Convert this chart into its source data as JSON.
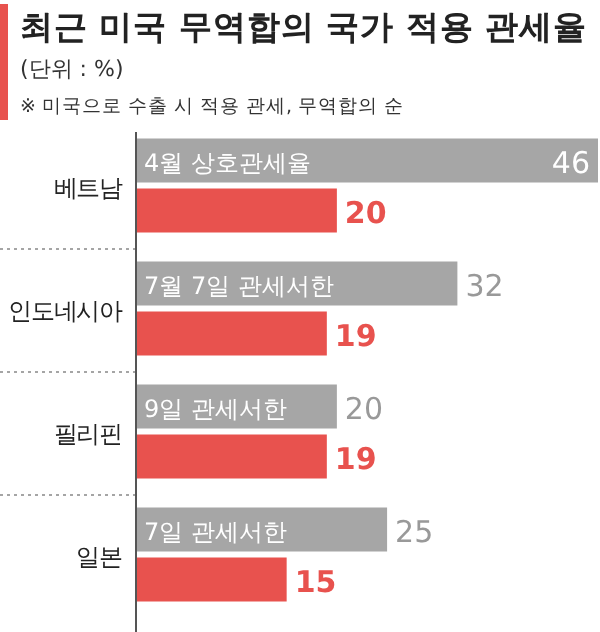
{
  "chart_data": {
    "type": "bar",
    "orientation": "horizontal",
    "title": "최근 미국 무역합의 국가 적용 관세율",
    "subtitle": "(단위 : %)",
    "annotations": [
      "※ 미국으로 수출 시 적용 관세, 무역합의 순",
      {
        "text": "4월 상호관세율",
        "y": "베트남"
      },
      {
        "text": "7월 7일 관세서한",
        "y": "인도네시아"
      },
      {
        "text": "9일 관세서한",
        "y": "필리핀"
      },
      {
        "text": "7일 관세서한",
        "y": "일본"
      }
    ],
    "categories": [
      "베트남",
      "인도네시아",
      "필리핀",
      "일본"
    ],
    "series": [
      {
        "color": "#a6a6a6",
        "values": [
          46,
          32,
          20,
          25
        ]
      },
      {
        "color": "#e8524e",
        "values": [
          20,
          19,
          19,
          15
        ]
      }
    ],
    "data_labels": true
  }
}
